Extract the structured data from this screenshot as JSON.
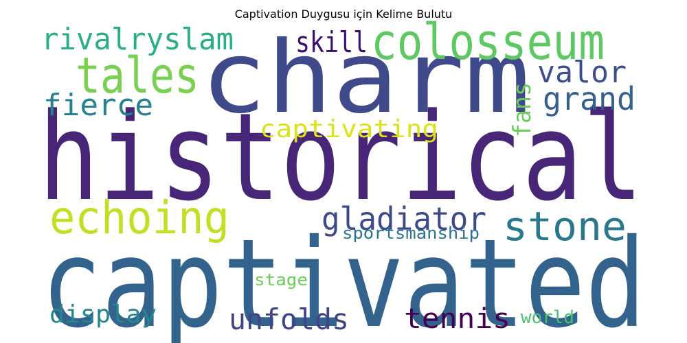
{
  "title": "Captivation Duygusu için Kelime Bulutu",
  "words": [
    {
      "text": "historical",
      "color": "#482677"
    },
    {
      "text": "captivated",
      "color": "#33638d"
    },
    {
      "text": "charm",
      "color": "#3e4a89"
    },
    {
      "text": "colosseum",
      "color": "#5ec962"
    },
    {
      "text": "tales",
      "color": "#7ad151"
    },
    {
      "text": "rivalryslam",
      "color": "#2ab07f"
    },
    {
      "text": "skill",
      "color": "#3b0f70"
    },
    {
      "text": "valor",
      "color": "#3d4e8a"
    },
    {
      "text": "grand",
      "color": "#355f8d"
    },
    {
      "text": "fierce",
      "color": "#26828e"
    },
    {
      "text": "fans",
      "color": "#6ccd5a"
    },
    {
      "text": "captivating",
      "color": "#dde318"
    },
    {
      "text": "echoing",
      "color": "#c2df23"
    },
    {
      "text": "gladiator",
      "color": "#3e4989"
    },
    {
      "text": "stone",
      "color": "#2a788e"
    },
    {
      "text": "sportsmanship",
      "color": "#2c738e"
    },
    {
      "text": "stage",
      "color": "#6ccd5a"
    },
    {
      "text": "display",
      "color": "#24868e"
    },
    {
      "text": "unfolds",
      "color": "#414487"
    },
    {
      "text": "tennis",
      "color": "#440154"
    },
    {
      "text": "world",
      "color": "#4ac16d"
    }
  ]
}
